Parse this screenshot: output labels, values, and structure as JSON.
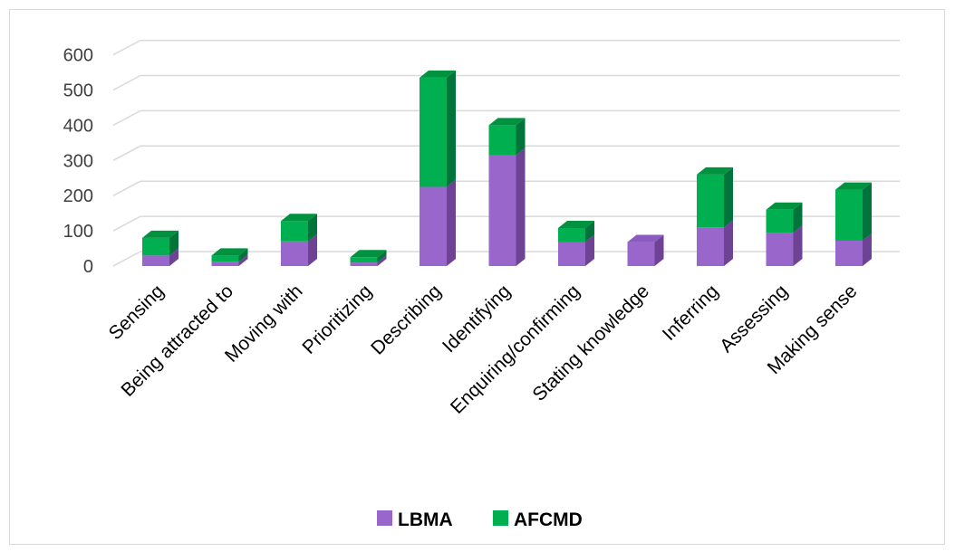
{
  "chart_data": {
    "type": "bar",
    "stacked": true,
    "style": "3d-column",
    "categories": [
      "Sensing",
      "Being attracted to",
      "Moving with",
      "Prioritizing",
      "Describing",
      "Identifying",
      "Enquiring/confirming",
      "Stating knowledge",
      "Inferring",
      "Assessing",
      "Making sense"
    ],
    "series": [
      {
        "name": "LBMA",
        "values": [
          30,
          12,
          70,
          10,
          225,
          315,
          68,
          68,
          110,
          95,
          72
        ]
      },
      {
        "name": "AFCMD",
        "values": [
          50,
          18,
          58,
          15,
          310,
          85,
          40,
          0,
          150,
          65,
          145
        ]
      }
    ],
    "ylim": [
      0,
      600
    ],
    "yticks": [
      0,
      100,
      200,
      300,
      400,
      500,
      600
    ],
    "grid": true,
    "legend": "bottom",
    "colors": {
      "LBMA": {
        "front": "#9966cc",
        "side": "#6e4294",
        "top": "#8a5cbf"
      },
      "AFCMD": {
        "front": "#00b050",
        "side": "#00743a",
        "top": "#00923f"
      }
    }
  }
}
